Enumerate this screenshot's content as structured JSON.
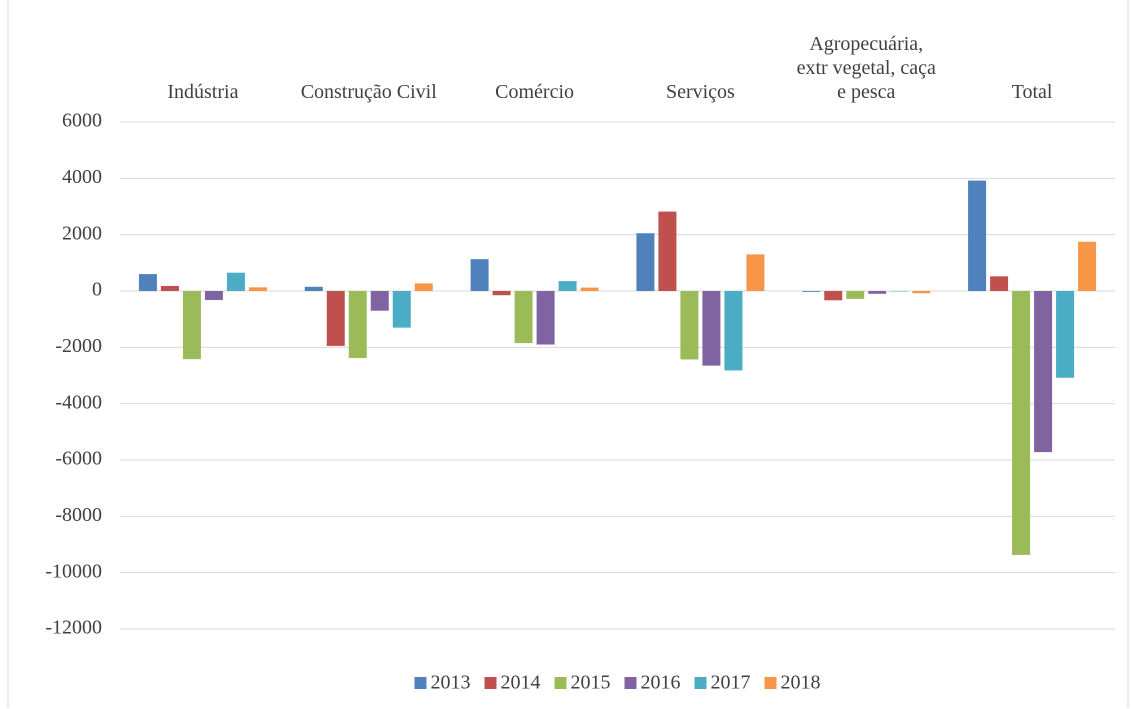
{
  "chart_data": {
    "type": "bar",
    "categories": [
      "Indústria",
      "Construção Civil",
      "Comércio",
      "Serviços",
      "Agropecuária, extr vegetal, caça e pesca",
      "Total"
    ],
    "series": [
      {
        "name": "2013",
        "color": "#4f81bd",
        "values": [
          600,
          150,
          1130,
          2050,
          -30,
          3920
        ]
      },
      {
        "name": "2014",
        "color": "#c0504d",
        "values": [
          180,
          -1950,
          -150,
          2820,
          -330,
          520
        ]
      },
      {
        "name": "2015",
        "color": "#9bbb59",
        "values": [
          -2420,
          -2380,
          -1850,
          -2430,
          -280,
          -9370
        ]
      },
      {
        "name": "2016",
        "color": "#8064a2",
        "values": [
          -320,
          -700,
          -1900,
          -2650,
          -100,
          -5720
        ]
      },
      {
        "name": "2017",
        "color": "#4bacc6",
        "values": [
          650,
          -1300,
          350,
          -2820,
          0,
          -3080
        ]
      },
      {
        "name": "2018",
        "color": "#f79646",
        "values": [
          130,
          270,
          120,
          1300,
          -80,
          1750
        ]
      }
    ],
    "ylim": [
      -12000,
      6000
    ],
    "yticks": [
      6000,
      4000,
      2000,
      0,
      -2000,
      -4000,
      -6000,
      -8000,
      -10000,
      -12000
    ],
    "grid": true,
    "legend": "bottom"
  }
}
